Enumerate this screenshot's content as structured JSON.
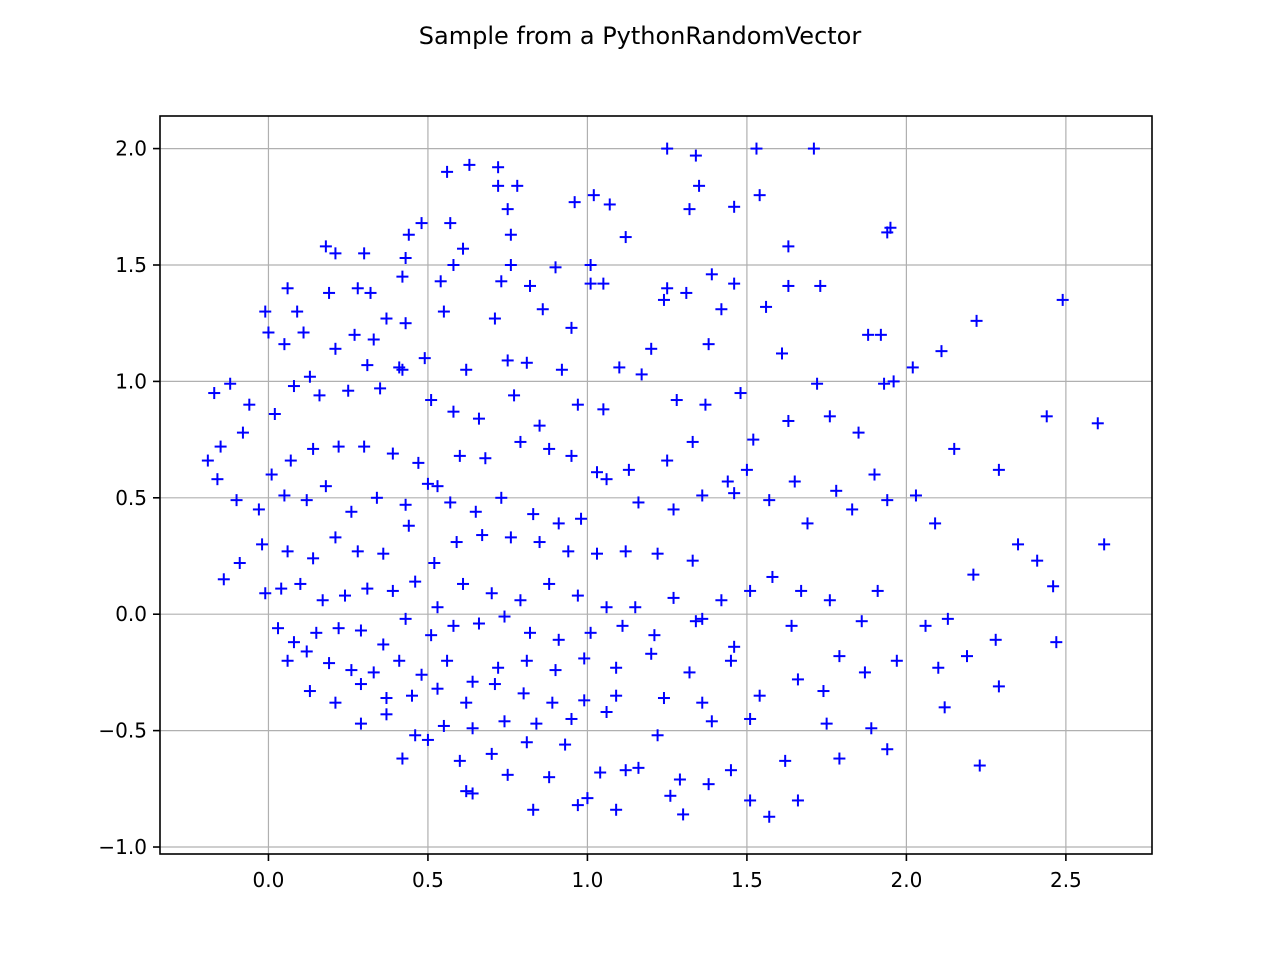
{
  "chart_data": {
    "type": "scatter",
    "title": "Sample from a PythonRandomVector",
    "xlabel": "",
    "ylabel": "",
    "xlim": [
      -0.34,
      2.77
    ],
    "ylim": [
      -1.03,
      2.14
    ],
    "xticks": [
      0.0,
      0.5,
      1.0,
      1.5,
      2.0,
      2.5
    ],
    "xtick_labels": [
      "0.0",
      "0.5",
      "1.0",
      "1.5",
      "2.0",
      "2.5"
    ],
    "yticks": [
      -1.0,
      -0.5,
      0.0,
      0.5,
      1.0,
      1.5,
      2.0
    ],
    "ytick_labels": [
      "−1.0",
      "−0.5",
      "0.0",
      "0.5",
      "1.0",
      "1.5",
      "2.0"
    ],
    "grid": true,
    "marker": "+",
    "color": "#0000ff",
    "series": [
      {
        "x": [
          1.25,
          1.34,
          1.53,
          1.71,
          0.63,
          0.56,
          0.72,
          0.72,
          0.78,
          1.35,
          1.02,
          1.07,
          1.54,
          1.46,
          0.96,
          0.75,
          1.32,
          0.57,
          0.44,
          0.48,
          0.76,
          1.12,
          1.95,
          1.94,
          0.18,
          0.21,
          0.61,
          0.43,
          0.3,
          0.58,
          0.76,
          0.9,
          1.01,
          1.46,
          1.25,
          1.31,
          0.06,
          0.09,
          0.19,
          0.28,
          0.32,
          0.37,
          0.42,
          0.54,
          0.73,
          0.82,
          1.01,
          1.24,
          1.39,
          1.63,
          1.73,
          2.49,
          2.22,
          -0.01,
          0.0,
          0.11,
          0.27,
          0.33,
          0.43,
          0.55,
          0.71,
          0.86,
          0.95,
          1.05,
          1.42,
          1.56,
          1.63,
          1.92,
          2.11,
          2.02,
          0.05,
          0.13,
          0.21,
          0.31,
          0.42,
          0.49,
          0.62,
          0.75,
          0.81,
          0.92,
          1.1,
          1.2,
          1.38,
          1.61,
          1.72,
          1.88,
          1.93,
          2.44,
          2.6,
          -0.12,
          -0.17,
          -0.06,
          0.02,
          0.08,
          0.16,
          0.25,
          0.35,
          0.41,
          0.51,
          0.58,
          0.66,
          0.77,
          0.85,
          0.97,
          1.05,
          1.17,
          1.28,
          1.37,
          1.48,
          1.52,
          1.63,
          1.76,
          1.85,
          1.96,
          2.15,
          2.29,
          -0.19,
          -0.15,
          -0.08,
          0.01,
          0.07,
          0.14,
          0.22,
          0.3,
          0.39,
          0.47,
          0.53,
          0.6,
          0.68,
          0.79,
          0.88,
          0.95,
          1.03,
          1.13,
          1.25,
          1.33,
          1.44,
          1.5,
          1.65,
          1.78,
          1.9,
          2.03,
          2.35,
          -0.16,
          -0.1,
          -0.03,
          0.05,
          0.12,
          0.18,
          0.26,
          0.34,
          0.43,
          0.5,
          0.57,
          0.65,
          0.73,
          0.83,
          0.91,
          0.98,
          1.06,
          1.16,
          1.27,
          1.36,
          1.46,
          1.57,
          1.69,
          1.83,
          1.94,
          2.09,
          2.21,
          2.41,
          2.62,
          -0.14,
          -0.09,
          -0.02,
          0.06,
          0.14,
          0.21,
          0.28,
          0.36,
          0.44,
          0.52,
          0.59,
          0.67,
          0.76,
          0.85,
          0.94,
          1.03,
          1.12,
          1.22,
          1.33,
          1.42,
          1.58,
          1.76,
          1.91,
          2.13,
          2.46,
          -0.01,
          0.04,
          0.1,
          0.17,
          0.24,
          0.31,
          0.39,
          0.46,
          0.53,
          0.61,
          0.7,
          0.79,
          0.88,
          0.97,
          1.06,
          1.15,
          1.27,
          1.36,
          1.51,
          1.67,
          1.86,
          2.06,
          2.28,
          0.03,
          0.08,
          0.15,
          0.22,
          0.29,
          0.36,
          0.43,
          0.51,
          0.58,
          0.66,
          0.74,
          0.82,
          0.91,
          1.01,
          1.11,
          1.21,
          1.34,
          1.46,
          1.64,
          1.79,
          1.97,
          2.19,
          2.47,
          0.06,
          0.12,
          0.19,
          0.26,
          0.33,
          0.41,
          0.48,
          0.56,
          0.64,
          0.72,
          0.81,
          0.9,
          0.99,
          1.09,
          1.2,
          1.32,
          1.45,
          1.66,
          1.87,
          2.1,
          2.29,
          0.13,
          0.21,
          0.29,
          0.37,
          0.45,
          0.53,
          0.62,
          0.71,
          0.8,
          0.89,
          0.99,
          1.09,
          1.24,
          1.36,
          1.54,
          1.74,
          1.89,
          2.12,
          0.29,
          0.37,
          0.46,
          0.55,
          0.64,
          0.74,
          0.84,
          0.95,
          1.06,
          1.22,
          1.39,
          1.51,
          1.75,
          1.94,
          2.23,
          0.42,
          0.5,
          0.6,
          0.7,
          0.81,
          0.93,
          1.04,
          1.16,
          1.29,
          1.45,
          1.62,
          1.79,
          0.62,
          0.75,
          0.88,
          1.0,
          1.12,
          1.26,
          1.38,
          1.51,
          1.66,
          0.64,
          0.83,
          0.97,
          1.09,
          1.3,
          1.57
        ],
        "y": [
          2.0,
          1.97,
          2.0,
          2.0,
          1.93,
          1.9,
          1.92,
          1.84,
          1.84,
          1.84,
          1.8,
          1.76,
          1.8,
          1.75,
          1.77,
          1.74,
          1.74,
          1.68,
          1.63,
          1.68,
          1.63,
          1.62,
          1.66,
          1.64,
          1.58,
          1.55,
          1.57,
          1.53,
          1.55,
          1.5,
          1.5,
          1.49,
          1.5,
          1.42,
          1.4,
          1.38,
          1.4,
          1.3,
          1.38,
          1.4,
          1.38,
          1.27,
          1.45,
          1.43,
          1.43,
          1.41,
          1.42,
          1.35,
          1.46,
          1.41,
          1.41,
          1.35,
          1.26,
          1.3,
          1.21,
          1.21,
          1.2,
          1.18,
          1.25,
          1.3,
          1.27,
          1.31,
          1.23,
          1.42,
          1.31,
          1.32,
          1.58,
          1.2,
          1.13,
          1.06,
          1.16,
          1.02,
          1.14,
          1.07,
          1.05,
          1.1,
          1.05,
          1.09,
          1.08,
          1.05,
          1.06,
          1.14,
          1.16,
          1.12,
          0.99,
          1.2,
          0.99,
          0.85,
          0.82,
          0.99,
          0.95,
          0.9,
          0.86,
          0.98,
          0.94,
          0.96,
          0.97,
          1.06,
          0.92,
          0.87,
          0.84,
          0.94,
          0.81,
          0.9,
          0.88,
          1.03,
          0.92,
          0.9,
          0.95,
          0.75,
          0.83,
          0.85,
          0.78,
          1.0,
          0.71,
          0.62,
          0.66,
          0.72,
          0.78,
          0.6,
          0.66,
          0.71,
          0.72,
          0.72,
          0.69,
          0.65,
          0.55,
          0.68,
          0.67,
          0.74,
          0.71,
          0.68,
          0.61,
          0.62,
          0.66,
          0.74,
          0.57,
          0.62,
          0.57,
          0.53,
          0.6,
          0.51,
          0.3,
          0.58,
          0.49,
          0.45,
          0.51,
          0.49,
          0.55,
          0.44,
          0.5,
          0.47,
          0.56,
          0.48,
          0.44,
          0.5,
          0.43,
          0.39,
          0.41,
          0.58,
          0.48,
          0.45,
          0.51,
          0.52,
          0.49,
          0.39,
          0.45,
          0.49,
          0.39,
          0.17,
          0.23,
          0.3,
          0.15,
          0.22,
          0.3,
          0.27,
          0.24,
          0.33,
          0.27,
          0.26,
          0.38,
          0.22,
          0.31,
          0.34,
          0.33,
          0.31,
          0.27,
          0.26,
          0.27,
          0.26,
          0.23,
          0.06,
          0.16,
          0.06,
          0.1,
          -0.02,
          0.12,
          0.09,
          0.11,
          0.13,
          0.06,
          0.08,
          0.11,
          0.1,
          0.14,
          0.03,
          0.13,
          0.09,
          0.06,
          0.13,
          0.08,
          0.03,
          0.03,
          0.07,
          -0.02,
          0.1,
          0.1,
          -0.03,
          -0.05,
          -0.11,
          -0.06,
          -0.12,
          -0.08,
          -0.06,
          -0.07,
          -0.13,
          -0.02,
          -0.09,
          -0.05,
          -0.04,
          -0.01,
          -0.08,
          -0.11,
          -0.08,
          -0.05,
          -0.09,
          -0.03,
          -0.14,
          -0.05,
          -0.18,
          -0.2,
          -0.18,
          -0.12,
          -0.2,
          -0.16,
          -0.21,
          -0.24,
          -0.25,
          -0.2,
          -0.26,
          -0.2,
          -0.29,
          -0.23,
          -0.2,
          -0.24,
          -0.19,
          -0.23,
          -0.17,
          -0.25,
          -0.2,
          -0.28,
          -0.25,
          -0.23,
          -0.31,
          -0.33,
          -0.38,
          -0.3,
          -0.36,
          -0.35,
          -0.32,
          -0.38,
          -0.3,
          -0.34,
          -0.38,
          -0.37,
          -0.35,
          -0.36,
          -0.38,
          -0.35,
          -0.33,
          -0.49,
          -0.4,
          -0.47,
          -0.43,
          -0.52,
          -0.48,
          -0.49,
          -0.46,
          -0.47,
          -0.45,
          -0.42,
          -0.52,
          -0.46,
          -0.45,
          -0.47,
          -0.58,
          -0.65,
          -0.62,
          -0.54,
          -0.63,
          -0.6,
          -0.55,
          -0.56,
          -0.68,
          -0.66,
          -0.71,
          -0.67,
          -0.63,
          -0.62,
          -0.76,
          -0.69,
          -0.7,
          -0.79,
          -0.67,
          -0.78,
          -0.73,
          -0.8,
          -0.8,
          -0.77,
          -0.84,
          -0.82,
          -0.84,
          -0.86,
          -0.87
        ]
      }
    ]
  }
}
